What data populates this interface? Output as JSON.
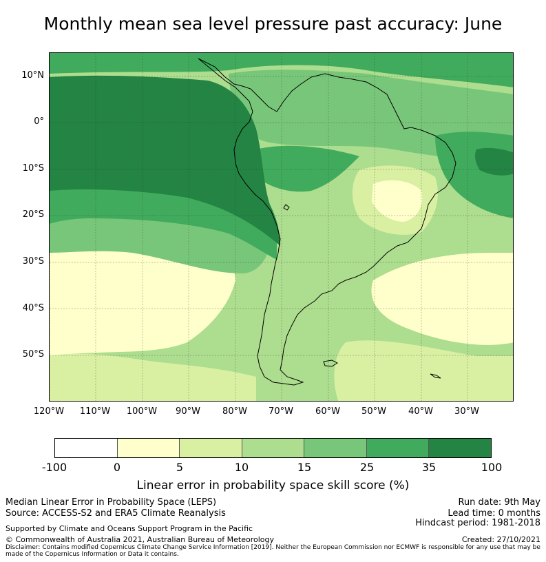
{
  "title": "Monthly mean sea level pressure past accuracy: June",
  "map": {
    "lat_labels": [
      "10°N",
      "0°",
      "10°S",
      "20°S",
      "30°S",
      "40°S",
      "50°S"
    ],
    "lon_labels": [
      "120°W",
      "110°W",
      "100°W",
      "90°W",
      "80°W",
      "70°W",
      "60°W",
      "50°W",
      "40°W",
      "30°W"
    ],
    "colors": {
      "band_100_0": "#ffffff",
      "band_0_5": "#ffffcc",
      "band_5_10": "#d9f0a3",
      "band_10_15": "#addd8e",
      "band_15_25": "#78c679",
      "band_25_35": "#41ab5d",
      "band_35_100": "#238443",
      "coast": "#000000"
    }
  },
  "colorbar": {
    "ticks": [
      "-100",
      "0",
      "5",
      "10",
      "15",
      "25",
      "35",
      "100"
    ],
    "colors": [
      "#ffffff",
      "#ffffcc",
      "#d9f0a3",
      "#addd8e",
      "#78c679",
      "#41ab5d",
      "#238443"
    ],
    "label": "Linear error in probability space skill score (%)"
  },
  "footer": {
    "left1": "Median Linear Error in Probability Space (LEPS)",
    "left2": "Source: ACCESS-S2 and ERA5 Climate Reanalysis",
    "right1": "Run date: 9th May",
    "right2": "Lead time: 0 months",
    "right3": "Hindcast period: 1981-2018",
    "supported": "Supported by Climate and Oceans Support Program in the Pacific",
    "copyright": "© Commonwealth of Australia 2021, Australian Bureau of Meteorology",
    "created": "Created: 27/10/2021",
    "disclaimer": "Disclaimer: Contains modified Copernicus Climate Change Service Information [2019]. Neither the European Commission nor ECMWF is responsible for any use that may be made of the Copernicus Information or Data it contains."
  }
}
